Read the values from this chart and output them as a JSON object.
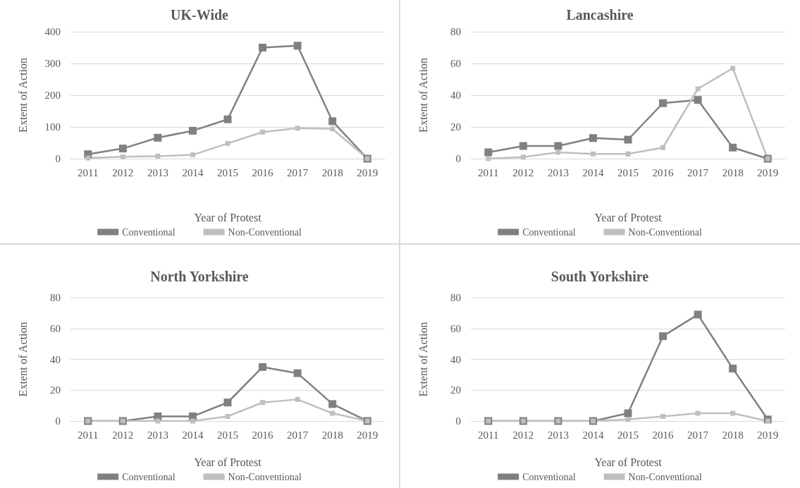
{
  "chart_data": [
    {
      "type": "line",
      "title": "UK-Wide",
      "xlabel": "Year of Protest",
      "ylabel": "Extent of Action",
      "categories": [
        "2011",
        "2012",
        "2013",
        "2014",
        "2015",
        "2016",
        "2017",
        "2018",
        "2019"
      ],
      "series": [
        {
          "name": "Conventional",
          "color": "#808080",
          "values": [
            14,
            32,
            66,
            88,
            124,
            350,
            356,
            118,
            0
          ]
        },
        {
          "name": "Non-Conventional",
          "color": "#bfbfbf",
          "values": [
            2,
            6,
            8,
            12,
            48,
            84,
            96,
            94,
            0
          ]
        }
      ],
      "ylim": [
        0,
        400
      ],
      "yticks": [
        0,
        100,
        200,
        300,
        400
      ],
      "grid": "y",
      "legend": "bottom",
      "marker": "square",
      "line_style": "solid"
    },
    {
      "type": "line",
      "title": "Lancashire",
      "xlabel": "Year of Protest",
      "ylabel": "Extent of Action",
      "categories": [
        "2011",
        "2012",
        "2013",
        "2014",
        "2015",
        "2016",
        "2017",
        "2018",
        "2019"
      ],
      "series": [
        {
          "name": "Conventional",
          "color": "#808080",
          "values": [
            4,
            8,
            8,
            13,
            12,
            35,
            37,
            7,
            0
          ]
        },
        {
          "name": "Non-Conventional",
          "color": "#bfbfbf",
          "values": [
            0,
            1,
            4,
            3,
            3,
            7,
            44,
            57,
            0
          ]
        }
      ],
      "ylim": [
        0,
        80
      ],
      "yticks": [
        0,
        20,
        40,
        60,
        80
      ],
      "grid": "y",
      "legend": "bottom",
      "marker": "square",
      "line_style": "solid"
    },
    {
      "type": "line",
      "title": "North Yorkshire",
      "xlabel": "Year of Protest",
      "ylabel": "Extent of Action",
      "categories": [
        "2011",
        "2012",
        "2013",
        "2014",
        "2015",
        "2016",
        "2017",
        "2018",
        "2019"
      ],
      "series": [
        {
          "name": "Conventional",
          "color": "#808080",
          "values": [
            0,
            0,
            3,
            3,
            12,
            35,
            31,
            11,
            0
          ]
        },
        {
          "name": "Non-Conventional",
          "color": "#bfbfbf",
          "values": [
            0,
            0,
            0,
            0,
            3,
            12,
            14,
            5,
            0
          ]
        }
      ],
      "ylim": [
        0,
        80
      ],
      "yticks": [
        0,
        20,
        40,
        60,
        80
      ],
      "grid": "y",
      "legend": "bottom",
      "marker": "square",
      "line_style": "solid"
    },
    {
      "type": "line",
      "title": "South Yorkshire",
      "xlabel": "Year of Protest",
      "ylabel": "Extent of Action",
      "categories": [
        "2011",
        "2012",
        "2013",
        "2014",
        "2015",
        "2016",
        "2017",
        "2018",
        "2019"
      ],
      "series": [
        {
          "name": "Conventional",
          "color": "#808080",
          "values": [
            0,
            0,
            0,
            0,
            5,
            55,
            69,
            34,
            1
          ]
        },
        {
          "name": "Non-Conventional",
          "color": "#bfbfbf",
          "values": [
            0,
            0,
            0,
            0,
            1,
            3,
            5,
            5,
            0
          ]
        }
      ],
      "ylim": [
        0,
        80
      ],
      "yticks": [
        0,
        20,
        40,
        60,
        80
      ],
      "grid": "y",
      "legend": "bottom",
      "marker": "square",
      "line_style": "solid"
    }
  ]
}
